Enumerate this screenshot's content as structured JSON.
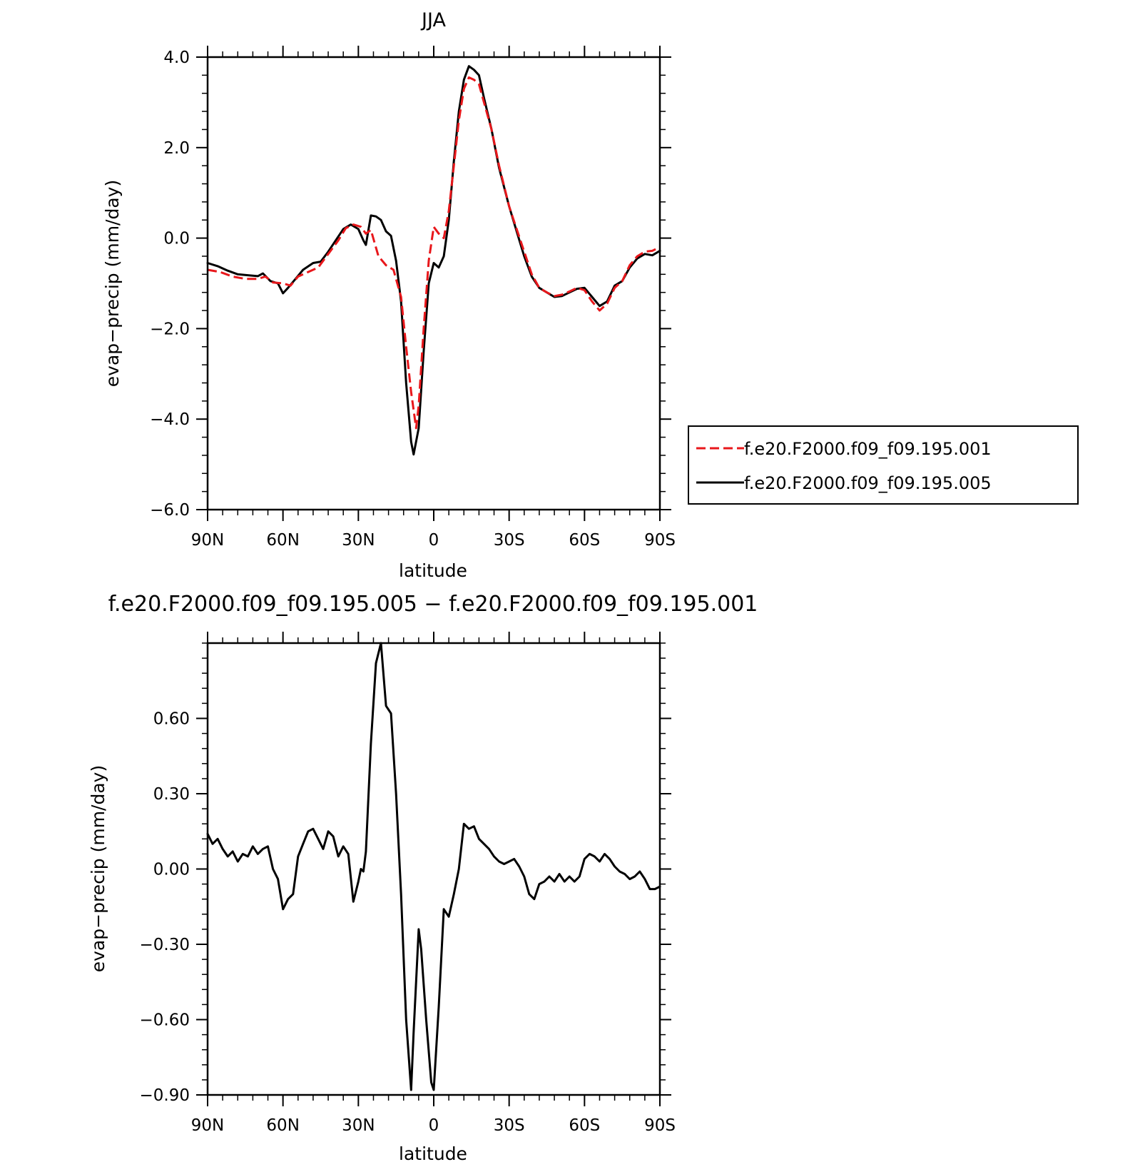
{
  "figure": {
    "background": "#ffffff",
    "colors": {
      "red_dashed": "#e8171b",
      "black": "#000000"
    }
  },
  "chart_data": [
    {
      "type": "line",
      "title": "JJA",
      "xlabel": "latitude",
      "ylabel": "evap−precip (mm/day)",
      "xlim": [
        -90,
        90
      ],
      "ylim": [
        -6,
        4
      ],
      "x_direction": "north-to-south",
      "x_ticks": [
        {
          "value": -90,
          "label": "90N"
        },
        {
          "value": -60,
          "label": "60N"
        },
        {
          "value": -30,
          "label": "30N"
        },
        {
          "value": 0,
          "label": "0"
        },
        {
          "value": 30,
          "label": "30S"
        },
        {
          "value": 60,
          "label": "60S"
        },
        {
          "value": 90,
          "label": "90S"
        }
      ],
      "y_ticks": [
        {
          "value": 4,
          "label": "4.0"
        },
        {
          "value": 2,
          "label": "2.0"
        },
        {
          "value": 0,
          "label": "0.0"
        },
        {
          "value": -2,
          "label": "−2.0"
        },
        {
          "value": -4,
          "label": "−4.0"
        },
        {
          "value": -6,
          "label": "−6.0"
        }
      ],
      "legend": {
        "placement": "right",
        "border": true
      },
      "series": [
        {
          "name": "f.e20.F2000.f09_f09.195.001",
          "color": "#e8171b",
          "dashed": true,
          "points": [
            [
              -90,
              -0.7
            ],
            [
              -85,
              -0.75
            ],
            [
              -80,
              -0.85
            ],
            [
              -75,
              -0.9
            ],
            [
              -70,
              -0.9
            ],
            [
              -67,
              -0.85
            ],
            [
              -64,
              -0.98
            ],
            [
              -60,
              -1.0
            ],
            [
              -57,
              -1.05
            ],
            [
              -54,
              -0.85
            ],
            [
              -50,
              -0.75
            ],
            [
              -46,
              -0.65
            ],
            [
              -42,
              -0.35
            ],
            [
              -38,
              -0.05
            ],
            [
              -35,
              0.22
            ],
            [
              -32,
              0.3
            ],
            [
              -29,
              0.25
            ],
            [
              -27,
              0.1
            ],
            [
              -25,
              0.18
            ],
            [
              -22,
              -0.4
            ],
            [
              -19,
              -0.6
            ],
            [
              -16,
              -0.7
            ],
            [
              -13,
              -1.3
            ],
            [
              -11,
              -2.4
            ],
            [
              -9,
              -3.4
            ],
            [
              -7,
              -4.2
            ],
            [
              -6,
              -3.7
            ],
            [
              -4,
              -2.0
            ],
            [
              -2,
              -0.5
            ],
            [
              0,
              0.25
            ],
            [
              2,
              0.1
            ],
            [
              4,
              0.0
            ],
            [
              6,
              0.6
            ],
            [
              8,
              1.6
            ],
            [
              10,
              2.6
            ],
            [
              12,
              3.3
            ],
            [
              14,
              3.55
            ],
            [
              16,
              3.5
            ],
            [
              18,
              3.4
            ],
            [
              20,
              3.0
            ],
            [
              23,
              2.4
            ],
            [
              26,
              1.6
            ],
            [
              30,
              0.7
            ],
            [
              33,
              0.2
            ],
            [
              36,
              -0.3
            ],
            [
              39,
              -0.8
            ],
            [
              42,
              -1.1
            ],
            [
              45,
              -1.2
            ],
            [
              48,
              -1.28
            ],
            [
              51,
              -1.25
            ],
            [
              54,
              -1.18
            ],
            [
              57,
              -1.1
            ],
            [
              60,
              -1.15
            ],
            [
              63,
              -1.4
            ],
            [
              66,
              -1.6
            ],
            [
              69,
              -1.45
            ],
            [
              72,
              -1.1
            ],
            [
              75,
              -0.95
            ],
            [
              78,
              -0.6
            ],
            [
              81,
              -0.4
            ],
            [
              84,
              -0.3
            ],
            [
              87,
              -0.28
            ],
            [
              90,
              -0.2
            ]
          ]
        },
        {
          "name": "f.e20.F2000.f09_f09.195.005",
          "color": "#000000",
          "dashed": false,
          "points": [
            [
              -90,
              -0.55
            ],
            [
              -86,
              -0.62
            ],
            [
              -82,
              -0.72
            ],
            [
              -78,
              -0.8
            ],
            [
              -74,
              -0.82
            ],
            [
              -70,
              -0.84
            ],
            [
              -68,
              -0.78
            ],
            [
              -65,
              -0.95
            ],
            [
              -62,
              -1.0
            ],
            [
              -60,
              -1.22
            ],
            [
              -58,
              -1.1
            ],
            [
              -55,
              -0.9
            ],
            [
              -52,
              -0.7
            ],
            [
              -48,
              -0.55
            ],
            [
              -45,
              -0.52
            ],
            [
              -42,
              -0.3
            ],
            [
              -39,
              -0.05
            ],
            [
              -36,
              0.2
            ],
            [
              -33,
              0.3
            ],
            [
              -30,
              0.2
            ],
            [
              -28,
              -0.05
            ],
            [
              -27,
              -0.15
            ],
            [
              -25,
              0.5
            ],
            [
              -23,
              0.48
            ],
            [
              -21,
              0.4
            ],
            [
              -19,
              0.15
            ],
            [
              -17,
              0.05
            ],
            [
              -15,
              -0.5
            ],
            [
              -13,
              -1.4
            ],
            [
              -11,
              -3.2
            ],
            [
              -9,
              -4.5
            ],
            [
              -8,
              -4.78
            ],
            [
              -6,
              -4.2
            ],
            [
              -4,
              -2.5
            ],
            [
              -2,
              -1.0
            ],
            [
              0,
              -0.55
            ],
            [
              2,
              -0.65
            ],
            [
              4,
              -0.4
            ],
            [
              6,
              0.4
            ],
            [
              8,
              1.7
            ],
            [
              10,
              2.8
            ],
            [
              12,
              3.5
            ],
            [
              14,
              3.8
            ],
            [
              16,
              3.72
            ],
            [
              18,
              3.6
            ],
            [
              20,
              3.1
            ],
            [
              23,
              2.4
            ],
            [
              26,
              1.55
            ],
            [
              30,
              0.7
            ],
            [
              33,
              0.15
            ],
            [
              36,
              -0.4
            ],
            [
              39,
              -0.85
            ],
            [
              42,
              -1.1
            ],
            [
              45,
              -1.2
            ],
            [
              48,
              -1.3
            ],
            [
              51,
              -1.28
            ],
            [
              54,
              -1.2
            ],
            [
              57,
              -1.12
            ],
            [
              60,
              -1.1
            ],
            [
              63,
              -1.3
            ],
            [
              66,
              -1.5
            ],
            [
              69,
              -1.4
            ],
            [
              72,
              -1.05
            ],
            [
              75,
              -0.95
            ],
            [
              78,
              -0.65
            ],
            [
              81,
              -0.45
            ],
            [
              84,
              -0.35
            ],
            [
              87,
              -0.38
            ],
            [
              90,
              -0.28
            ]
          ]
        }
      ]
    },
    {
      "type": "line",
      "title": "f.e20.F2000.f09_f09.195.005 − f.e20.F2000.f09_f09.195.001",
      "xlabel": "latitude",
      "ylabel": "evap−precip (mm/day)",
      "xlim": [
        -90,
        90
      ],
      "ylim": [
        -0.9,
        0.9
      ],
      "x_direction": "north-to-south",
      "x_ticks": [
        {
          "value": -90,
          "label": "90N"
        },
        {
          "value": -60,
          "label": "60N"
        },
        {
          "value": -30,
          "label": "30N"
        },
        {
          "value": 0,
          "label": "0"
        },
        {
          "value": 30,
          "label": "30S"
        },
        {
          "value": 60,
          "label": "60S"
        },
        {
          "value": 90,
          "label": "90S"
        }
      ],
      "y_ticks": [
        {
          "value": 0.6,
          "label": "0.60"
        },
        {
          "value": 0.3,
          "label": "0.30"
        },
        {
          "value": 0.0,
          "label": "0.00"
        },
        {
          "value": -0.3,
          "label": "−0.30"
        },
        {
          "value": -0.6,
          "label": "−0.60"
        },
        {
          "value": -0.9,
          "label": "−0.90"
        }
      ],
      "series": [
        {
          "color": "#000000",
          "dashed": false,
          "points": [
            [
              -90,
              0.14
            ],
            [
              -88,
              0.1
            ],
            [
              -86,
              0.12
            ],
            [
              -84,
              0.08
            ],
            [
              -82,
              0.05
            ],
            [
              -80,
              0.07
            ],
            [
              -78,
              0.03
            ],
            [
              -76,
              0.06
            ],
            [
              -74,
              0.05
            ],
            [
              -72,
              0.09
            ],
            [
              -70,
              0.06
            ],
            [
              -68,
              0.08
            ],
            [
              -66,
              0.09
            ],
            [
              -64,
              0.0
            ],
            [
              -62,
              -0.04
            ],
            [
              -60,
              -0.16
            ],
            [
              -58,
              -0.12
            ],
            [
              -56,
              -0.1
            ],
            [
              -54,
              0.05
            ],
            [
              -52,
              0.1
            ],
            [
              -50,
              0.15
            ],
            [
              -48,
              0.16
            ],
            [
              -46,
              0.12
            ],
            [
              -44,
              0.08
            ],
            [
              -42,
              0.15
            ],
            [
              -40,
              0.13
            ],
            [
              -38,
              0.05
            ],
            [
              -36,
              0.09
            ],
            [
              -34,
              0.06
            ],
            [
              -32,
              -0.13
            ],
            [
              -30,
              -0.05
            ],
            [
              -29,
              0.0
            ],
            [
              -28,
              -0.01
            ],
            [
              -27,
              0.07
            ],
            [
              -25,
              0.5
            ],
            [
              -23,
              0.82
            ],
            [
              -21,
              0.9
            ],
            [
              -19,
              0.65
            ],
            [
              -17,
              0.62
            ],
            [
              -15,
              0.3
            ],
            [
              -13,
              -0.1
            ],
            [
              -11,
              -0.6
            ],
            [
              -9,
              -0.88
            ],
            [
              -8,
              -0.65
            ],
            [
              -6,
              -0.24
            ],
            [
              -5,
              -0.32
            ],
            [
              -3,
              -0.6
            ],
            [
              -1,
              -0.85
            ],
            [
              0,
              -0.88
            ],
            [
              2,
              -0.55
            ],
            [
              4,
              -0.16
            ],
            [
              6,
              -0.19
            ],
            [
              8,
              -0.1
            ],
            [
              10,
              0.0
            ],
            [
              12,
              0.18
            ],
            [
              14,
              0.16
            ],
            [
              16,
              0.17
            ],
            [
              18,
              0.12
            ],
            [
              20,
              0.1
            ],
            [
              22,
              0.08
            ],
            [
              24,
              0.05
            ],
            [
              26,
              0.03
            ],
            [
              28,
              0.02
            ],
            [
              30,
              0.03
            ],
            [
              32,
              0.04
            ],
            [
              34,
              0.01
            ],
            [
              36,
              -0.03
            ],
            [
              38,
              -0.1
            ],
            [
              40,
              -0.12
            ],
            [
              42,
              -0.06
            ],
            [
              44,
              -0.05
            ],
            [
              46,
              -0.03
            ],
            [
              48,
              -0.05
            ],
            [
              50,
              -0.02
            ],
            [
              52,
              -0.05
            ],
            [
              54,
              -0.03
            ],
            [
              56,
              -0.05
            ],
            [
              58,
              -0.03
            ],
            [
              60,
              0.04
            ],
            [
              62,
              0.06
            ],
            [
              64,
              0.05
            ],
            [
              66,
              0.03
            ],
            [
              68,
              0.06
            ],
            [
              70,
              0.04
            ],
            [
              72,
              0.01
            ],
            [
              74,
              -0.01
            ],
            [
              76,
              -0.02
            ],
            [
              78,
              -0.04
            ],
            [
              80,
              -0.03
            ],
            [
              82,
              -0.01
            ],
            [
              84,
              -0.04
            ],
            [
              86,
              -0.08
            ],
            [
              88,
              -0.08
            ],
            [
              90,
              -0.07
            ]
          ]
        }
      ]
    }
  ]
}
